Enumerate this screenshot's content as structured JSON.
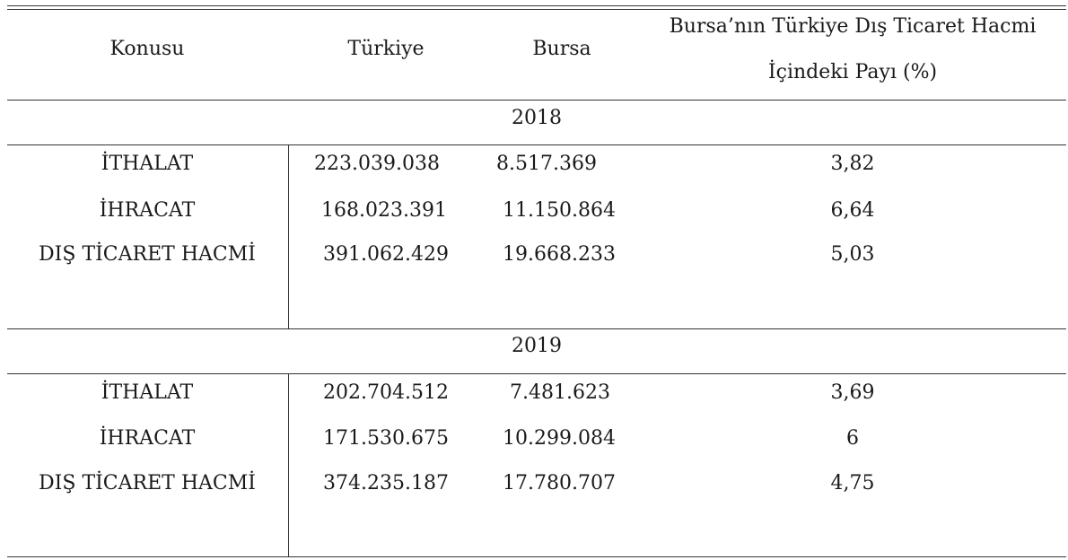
{
  "table": {
    "headers": {
      "konusu": "Konusu",
      "turkiye": "Türkiye",
      "bursa": "Bursa",
      "share_line1": "Bursa’nın Türkiye Dış Ticaret Hacmi",
      "share_line2": "İçindeki Payı (%)"
    },
    "sections": [
      {
        "year": "2018",
        "rows": [
          {
            "label": "İTHALAT",
            "turkiye": "223.039.038",
            "bursa": "8.517.369",
            "share": "3,82"
          },
          {
            "label": "İHRACAT",
            "turkiye": "168.023.391",
            "bursa": "11.150.864",
            "share": "6,64"
          },
          {
            "label": "DIŞ TİCARET HACMİ",
            "turkiye": "391.062.429",
            "bursa": "19.668.233",
            "share": "5,03"
          }
        ]
      },
      {
        "year": "2019",
        "rows": [
          {
            "label": "İTHALAT",
            "turkiye": "202.704.512",
            "bursa": "7.481.623",
            "share": "3,69"
          },
          {
            "label": "İHRACAT",
            "turkiye": "171.530.675",
            "bursa": "10.299.084",
            "share": "6"
          },
          {
            "label": "DIŞ TİCARET HACMİ",
            "turkiye": "374.235.187",
            "bursa": "17.780.707",
            "share": "4,75"
          }
        ]
      }
    ]
  }
}
